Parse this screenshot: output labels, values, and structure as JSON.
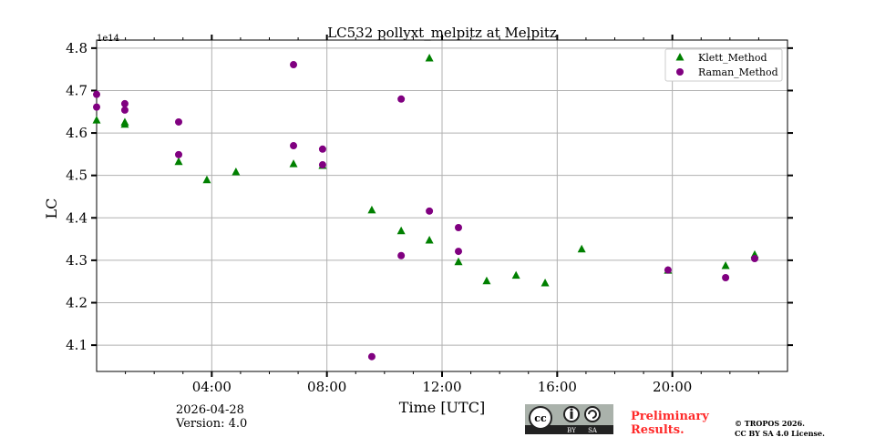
{
  "chart_data": {
    "type": "scatter",
    "title": "LC532 pollyxt_melpitz at Melpitz",
    "xlabel": "Time [UTC]",
    "ylabel": "LC",
    "y_multiplier_label": "1e14",
    "xlim": [
      0,
      24
    ],
    "ylim": [
      4.038,
      4.819
    ],
    "xticks": [
      {
        "v": 4,
        "label": "04:00"
      },
      {
        "v": 8,
        "label": "08:00"
      },
      {
        "v": 12,
        "label": "12:00"
      },
      {
        "v": 16,
        "label": "16:00"
      },
      {
        "v": 20,
        "label": "20:00"
      }
    ],
    "yticks": [
      {
        "v": 4.1,
        "label": "4.1"
      },
      {
        "v": 4.2,
        "label": "4.2"
      },
      {
        "v": 4.3,
        "label": "4.3"
      },
      {
        "v": 4.4,
        "label": "4.4"
      },
      {
        "v": 4.5,
        "label": "4.5"
      },
      {
        "v": 4.6,
        "label": "4.6"
      },
      {
        "v": 4.7,
        "label": "4.7"
      },
      {
        "v": 4.8,
        "label": "4.8"
      }
    ],
    "grid": true,
    "legend_position": "top-right",
    "series": [
      {
        "name": "Klett_Method",
        "marker": "triangle",
        "color": "#008000",
        "x": [
          0.0,
          0.98,
          0.98,
          2.85,
          3.83,
          4.84,
          6.84,
          7.85,
          9.56,
          10.58,
          11.56,
          11.56,
          12.57,
          13.55,
          14.57,
          15.58,
          16.85,
          19.85,
          21.85,
          22.86
        ],
        "y": [
          4.63,
          4.625,
          4.62,
          4.532,
          4.489,
          4.508,
          4.527,
          4.523,
          4.418,
          4.369,
          4.776,
          4.347,
          4.296,
          4.251,
          4.264,
          4.246,
          4.326,
          4.276,
          4.287,
          4.313
        ]
      },
      {
        "name": "Raman_Method",
        "marker": "circle",
        "color": "#800080",
        "x": [
          0.0,
          0.0,
          0.98,
          0.98,
          2.85,
          2.85,
          6.84,
          6.84,
          7.85,
          7.85,
          9.56,
          10.58,
          10.58,
          11.56,
          12.57,
          12.57,
          19.85,
          21.85,
          22.86
        ],
        "y": [
          4.691,
          4.661,
          4.669,
          4.654,
          4.626,
          4.549,
          4.761,
          4.57,
          4.562,
          4.525,
          4.073,
          4.68,
          4.311,
          4.416,
          4.377,
          4.321,
          4.277,
          4.259,
          4.304
        ]
      }
    ]
  },
  "footer": {
    "date": "2026-04-28",
    "version": "Version: 4.0",
    "preliminary": [
      "Preliminary",
      "Results."
    ],
    "copyright": [
      "© TROPOS 2026.",
      "CC BY SA 4.0 License."
    ],
    "license_badge": [
      "cc",
      "BY",
      "SA"
    ]
  }
}
